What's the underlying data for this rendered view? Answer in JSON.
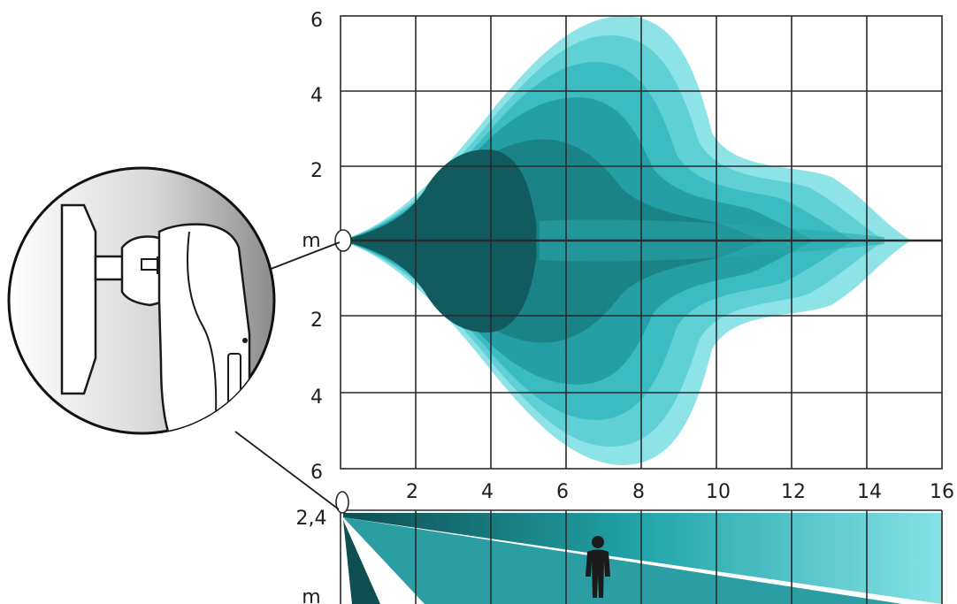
{
  "top_view": {
    "unit_label": "m",
    "y_labels_upper": [
      "6",
      "4",
      "2"
    ],
    "y_labels_lower": [
      "2",
      "4",
      "6"
    ],
    "x_labels": [
      "2",
      "4",
      "6",
      "8",
      "10",
      "12",
      "14",
      "16"
    ]
  },
  "side_view": {
    "height_label": "2,4",
    "unit_label": "m"
  },
  "colors": {
    "dark": "#13585b",
    "mid": "#1e9aa0",
    "light": "#7fdfe3",
    "grid": "#2a2a2a"
  },
  "icons": [
    "pir-sensor-icon",
    "person-icon",
    "magnifier-icon"
  ]
}
